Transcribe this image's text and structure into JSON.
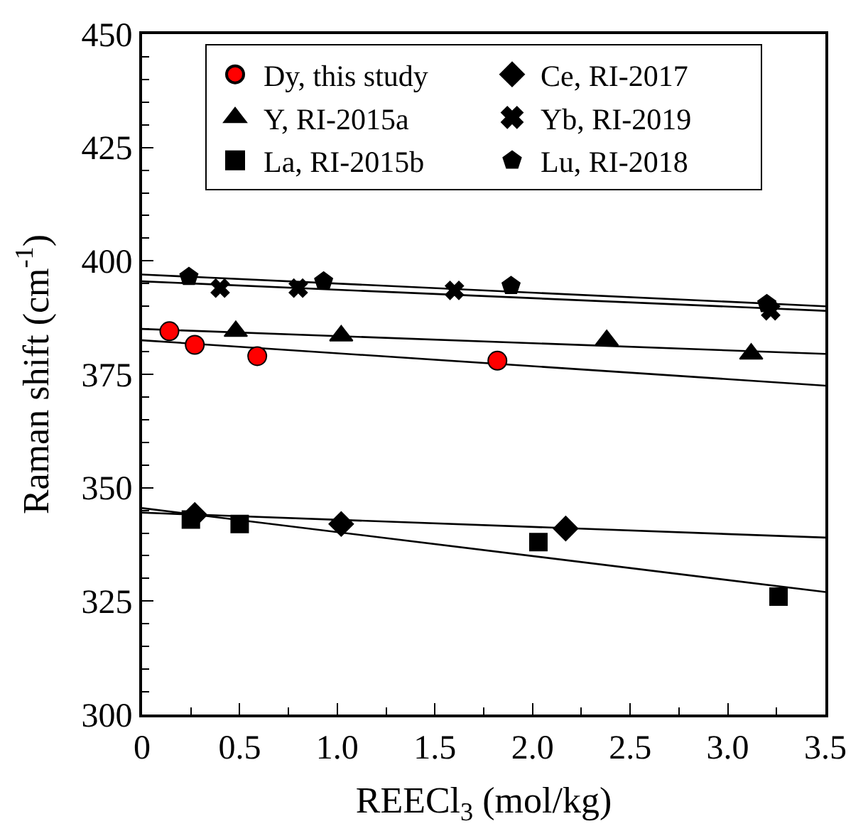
{
  "chart_data": {
    "type": "scatter",
    "xlabel": "REECl$_{3}$ (mol/kg)",
    "ylabel": "Raman shift (cm$^{-1}$)",
    "xlim": [
      0,
      3.5
    ],
    "ylim": [
      300,
      450
    ],
    "xticks": [
      0,
      {
        "value": 0.25,
        "label": null
      },
      0.5,
      {
        "value": 0.75,
        "label": null
      },
      {
        "value": 1,
        "label": "1.0"
      },
      {
        "value": 1.25,
        "label": null
      },
      1.5,
      {
        "value": 1.75,
        "label": null
      },
      {
        "value": 2,
        "label": "2.0"
      },
      {
        "value": 2.25,
        "label": null
      },
      2.5,
      {
        "value": 2.75,
        "label": null
      },
      {
        "value": 3,
        "label": "3.0"
      },
      {
        "value": 3.25,
        "label": null
      },
      3.5
    ],
    "yticks": [
      300,
      {
        "value": 305,
        "label": null
      },
      {
        "value": 310,
        "label": null
      },
      {
        "value": 315,
        "label": null
      },
      {
        "value": 320,
        "label": null
      },
      325,
      {
        "value": 330,
        "label": null
      },
      {
        "value": 335,
        "label": null
      },
      {
        "value": 340,
        "label": null
      },
      {
        "value": 345,
        "label": null
      },
      350,
      {
        "value": 355,
        "label": null
      },
      {
        "value": 360,
        "label": null
      },
      {
        "value": 365,
        "label": null
      },
      {
        "value": 370,
        "label": null
      },
      375,
      {
        "value": 380,
        "label": null
      },
      {
        "value": 385,
        "label": null
      },
      {
        "value": 390,
        "label": null
      },
      {
        "value": 395,
        "label": null
      },
      400,
      {
        "value": 405,
        "label": null
      },
      {
        "value": 410,
        "label": null
      },
      {
        "value": 415,
        "label": null
      },
      {
        "value": 420,
        "label": null
      },
      425,
      {
        "value": 430,
        "label": null
      },
      {
        "value": 435,
        "label": null
      },
      {
        "value": 440,
        "label": null
      },
      {
        "value": 445,
        "label": null
      },
      450
    ],
    "legend": "top",
    "series": [
      {
        "name": "Dy, this study",
        "color": "#ff0000",
        "marker": "circle",
        "x": [
          0.14,
          0.27,
          0.59,
          1.82
        ],
        "values": [
          384.5,
          381.5,
          379,
          378
        ]
      },
      {
        "name": "Ce, RI-2017",
        "color": "#000000",
        "marker": "diamond",
        "x": [
          0.27,
          1.02,
          2.17
        ],
        "values": [
          344,
          342,
          341
        ]
      },
      {
        "name": "Y, RI-2015a",
        "color": "#000000",
        "marker": "triangle",
        "x": [
          0.48,
          1.02,
          2.38,
          3.12
        ],
        "values": [
          384.5,
          383.5,
          382.5,
          379.5
        ]
      },
      {
        "name": "Yb, RI-2019",
        "color": "#000000",
        "marker": "cross",
        "x": [
          0.4,
          0.8,
          1.6,
          3.22
        ],
        "values": [
          394,
          394,
          393.5,
          389
        ]
      },
      {
        "name": "La, RI-2015b",
        "color": "#000000",
        "marker": "square",
        "x": [
          0.25,
          0.5,
          2.03,
          3.26
        ],
        "values": [
          343,
          342,
          338,
          326
        ]
      },
      {
        "name": "Lu, RI-2018",
        "color": "#000000",
        "x": [
          0.24,
          0.93,
          1.89,
          3.2
        ],
        "values": [
          396.5,
          395.5,
          394.5,
          390.5
        ]
      },
      {
        "type": "line",
        "color": "#000000",
        "x": [
          0,
          3.5
        ],
        "values": [
          382.5,
          372.5
        ]
      },
      {
        "type": "line",
        "color": "#000000",
        "x": [
          0,
          3.5
        ],
        "values": [
          385,
          379.5
        ]
      },
      {
        "type": "line",
        "color": "#000000",
        "x": [
          0,
          3.5
        ],
        "values": [
          345.5,
          327
        ]
      },
      {
        "type": "line",
        "color": "#000000",
        "x": [
          0,
          3.5
        ],
        "values": [
          344.5,
          339
        ]
      },
      {
        "type": "line",
        "color": "#000000",
        "x": [
          0,
          3.5
        ],
        "values": [
          395.5,
          389
        ]
      },
      {
        "type": "line",
        "color": "#000000",
        "x": [
          0,
          3.5
        ],
        "values": [
          397,
          390
        ]
      }
    ]
  }
}
